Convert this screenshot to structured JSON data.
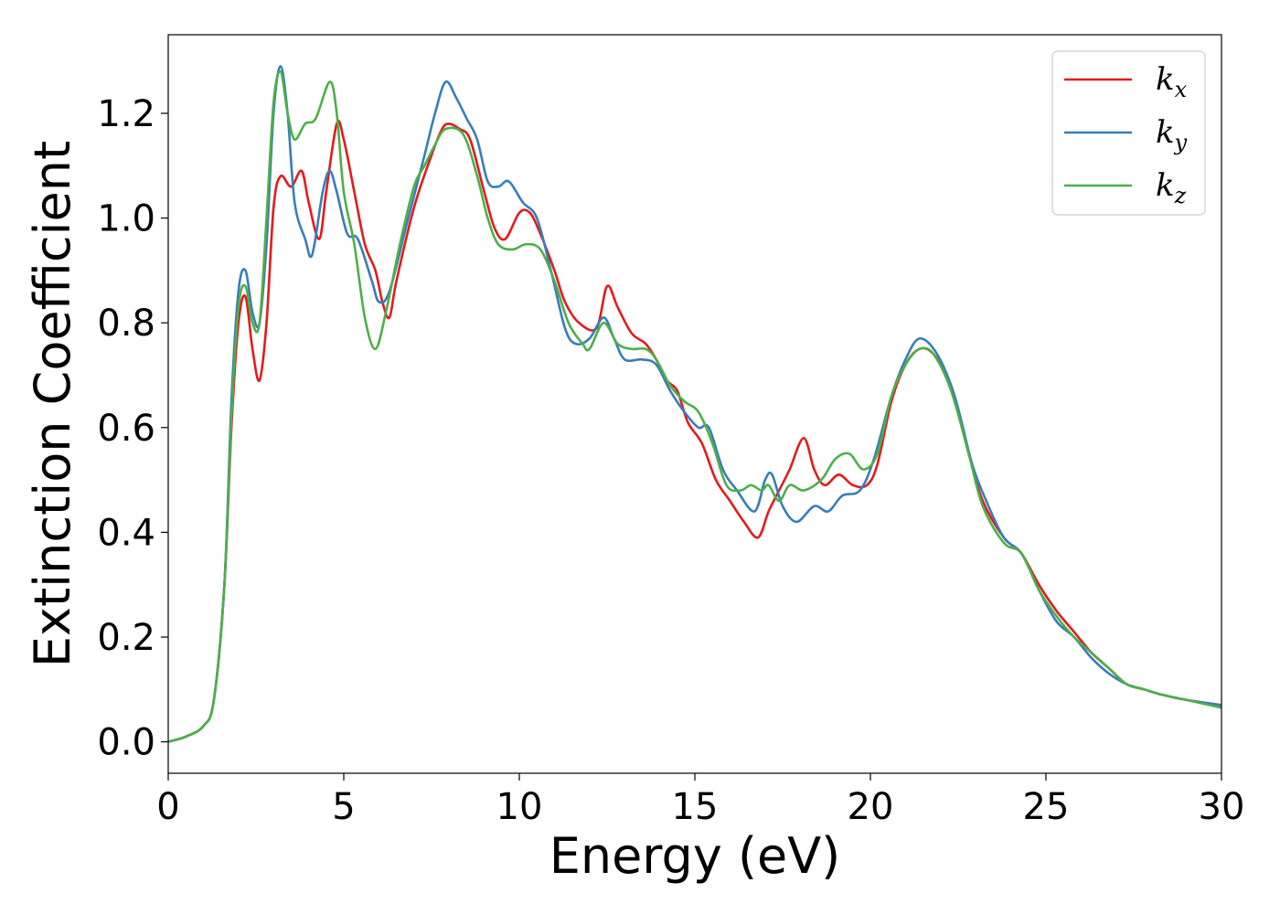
{
  "chart_data": {
    "type": "line",
    "title": "",
    "xlabel": "Energy (eV)",
    "ylabel": "Extinction Coefficient",
    "xlim": [
      0,
      30
    ],
    "ylim": [
      -0.06,
      1.35
    ],
    "xticks": [
      0,
      5,
      10,
      15,
      20,
      25,
      30
    ],
    "yticks": [
      0.0,
      0.2,
      0.4,
      0.6,
      0.8,
      1.0,
      1.2
    ],
    "ytick_labels": [
      "0.0",
      "0.2",
      "0.4",
      "0.6",
      "0.8",
      "1.0",
      "1.2"
    ],
    "grid": false,
    "legend_position": "top-right",
    "series": [
      {
        "name": "kx",
        "base": "k",
        "sub": "x",
        "color": "#e41a1c",
        "points": [
          [
            0,
            0
          ],
          [
            0.5,
            0.01
          ],
          [
            1,
            0.03
          ],
          [
            1.3,
            0.08
          ],
          [
            1.6,
            0.3
          ],
          [
            1.8,
            0.6
          ],
          [
            2.0,
            0.8
          ],
          [
            2.2,
            0.85
          ],
          [
            2.4,
            0.75
          ],
          [
            2.6,
            0.69
          ],
          [
            2.8,
            0.8
          ],
          [
            3.0,
            1.02
          ],
          [
            3.2,
            1.08
          ],
          [
            3.5,
            1.06
          ],
          [
            3.8,
            1.09
          ],
          [
            4.0,
            1.03
          ],
          [
            4.3,
            0.96
          ],
          [
            4.5,
            1.05
          ],
          [
            4.8,
            1.18
          ],
          [
            5.0,
            1.15
          ],
          [
            5.3,
            1.05
          ],
          [
            5.6,
            0.95
          ],
          [
            5.9,
            0.9
          ],
          [
            6.1,
            0.84
          ],
          [
            6.3,
            0.81
          ],
          [
            6.5,
            0.88
          ],
          [
            7.0,
            1.02
          ],
          [
            7.5,
            1.12
          ],
          [
            7.8,
            1.17
          ],
          [
            8.0,
            1.18
          ],
          [
            8.3,
            1.17
          ],
          [
            8.6,
            1.15
          ],
          [
            9.0,
            1.05
          ],
          [
            9.3,
            0.98
          ],
          [
            9.6,
            0.96
          ],
          [
            10.0,
            1.01
          ],
          [
            10.3,
            1.01
          ],
          [
            10.6,
            0.97
          ],
          [
            11.0,
            0.9
          ],
          [
            11.3,
            0.84
          ],
          [
            11.7,
            0.8
          ],
          [
            12.2,
            0.79
          ],
          [
            12.5,
            0.87
          ],
          [
            12.8,
            0.83
          ],
          [
            13.2,
            0.78
          ],
          [
            13.6,
            0.76
          ],
          [
            13.9,
            0.73
          ],
          [
            14.2,
            0.69
          ],
          [
            14.5,
            0.67
          ],
          [
            14.8,
            0.61
          ],
          [
            15.2,
            0.57
          ],
          [
            15.6,
            0.5
          ],
          [
            16.0,
            0.46
          ],
          [
            16.4,
            0.42
          ],
          [
            16.8,
            0.39
          ],
          [
            17.1,
            0.44
          ],
          [
            17.4,
            0.48
          ],
          [
            17.7,
            0.52
          ],
          [
            18.1,
            0.58
          ],
          [
            18.4,
            0.52
          ],
          [
            18.7,
            0.49
          ],
          [
            19.1,
            0.51
          ],
          [
            19.5,
            0.49
          ],
          [
            19.9,
            0.49
          ],
          [
            20.2,
            0.53
          ],
          [
            20.6,
            0.65
          ],
          [
            21.0,
            0.72
          ],
          [
            21.4,
            0.75
          ],
          [
            21.8,
            0.74
          ],
          [
            22.3,
            0.68
          ],
          [
            22.8,
            0.55
          ],
          [
            23.2,
            0.46
          ],
          [
            23.8,
            0.39
          ],
          [
            24.3,
            0.36
          ],
          [
            24.8,
            0.3
          ],
          [
            25.3,
            0.25
          ],
          [
            25.8,
            0.21
          ],
          [
            26.3,
            0.17
          ],
          [
            26.8,
            0.14
          ],
          [
            27.3,
            0.11
          ],
          [
            27.8,
            0.1
          ],
          [
            28.3,
            0.09
          ],
          [
            29.0,
            0.08
          ],
          [
            30,
            0.07
          ]
        ]
      },
      {
        "name": "ky",
        "base": "k",
        "sub": "y",
        "color": "#377eb8",
        "points": [
          [
            0,
            0
          ],
          [
            0.5,
            0.01
          ],
          [
            1,
            0.03
          ],
          [
            1.3,
            0.08
          ],
          [
            1.6,
            0.3
          ],
          [
            1.8,
            0.65
          ],
          [
            2.0,
            0.86
          ],
          [
            2.2,
            0.9
          ],
          [
            2.4,
            0.82
          ],
          [
            2.6,
            0.8
          ],
          [
            2.8,
            0.95
          ],
          [
            3.0,
            1.2
          ],
          [
            3.2,
            1.29
          ],
          [
            3.4,
            1.2
          ],
          [
            3.6,
            1.03
          ],
          [
            3.9,
            0.96
          ],
          [
            4.1,
            0.93
          ],
          [
            4.4,
            1.05
          ],
          [
            4.6,
            1.09
          ],
          [
            4.8,
            1.05
          ],
          [
            5.1,
            0.97
          ],
          [
            5.4,
            0.96
          ],
          [
            5.8,
            0.88
          ],
          [
            6.0,
            0.84
          ],
          [
            6.3,
            0.86
          ],
          [
            6.8,
            0.99
          ],
          [
            7.3,
            1.12
          ],
          [
            7.6,
            1.2
          ],
          [
            7.9,
            1.26
          ],
          [
            8.2,
            1.23
          ],
          [
            8.5,
            1.19
          ],
          [
            8.8,
            1.15
          ],
          [
            9.1,
            1.07
          ],
          [
            9.4,
            1.06
          ],
          [
            9.7,
            1.07
          ],
          [
            10.1,
            1.03
          ],
          [
            10.5,
            1.0
          ],
          [
            10.9,
            0.9
          ],
          [
            11.3,
            0.79
          ],
          [
            11.6,
            0.76
          ],
          [
            12.0,
            0.77
          ],
          [
            12.4,
            0.81
          ],
          [
            12.7,
            0.77
          ],
          [
            13.0,
            0.73
          ],
          [
            13.5,
            0.73
          ],
          [
            13.9,
            0.72
          ],
          [
            14.3,
            0.67
          ],
          [
            14.7,
            0.63
          ],
          [
            15.1,
            0.6
          ],
          [
            15.4,
            0.6
          ],
          [
            15.8,
            0.52
          ],
          [
            16.2,
            0.48
          ],
          [
            16.7,
            0.44
          ],
          [
            17.0,
            0.5
          ],
          [
            17.2,
            0.51
          ],
          [
            17.5,
            0.45
          ],
          [
            17.9,
            0.42
          ],
          [
            18.4,
            0.45
          ],
          [
            18.8,
            0.44
          ],
          [
            19.2,
            0.47
          ],
          [
            19.7,
            0.48
          ],
          [
            20.1,
            0.54
          ],
          [
            20.6,
            0.66
          ],
          [
            21.0,
            0.73
          ],
          [
            21.4,
            0.77
          ],
          [
            21.9,
            0.74
          ],
          [
            22.4,
            0.66
          ],
          [
            22.9,
            0.53
          ],
          [
            23.3,
            0.46
          ],
          [
            23.8,
            0.39
          ],
          [
            24.3,
            0.36
          ],
          [
            24.8,
            0.29
          ],
          [
            25.3,
            0.23
          ],
          [
            25.8,
            0.2
          ],
          [
            26.3,
            0.16
          ],
          [
            26.8,
            0.13
          ],
          [
            27.3,
            0.11
          ],
          [
            27.8,
            0.1
          ],
          [
            28.3,
            0.09
          ],
          [
            29.0,
            0.08
          ],
          [
            30,
            0.07
          ]
        ]
      },
      {
        "name": "kz",
        "base": "k",
        "sub": "z",
        "color": "#4daf4a",
        "points": [
          [
            0,
            0
          ],
          [
            0.5,
            0.01
          ],
          [
            1,
            0.03
          ],
          [
            1.3,
            0.08
          ],
          [
            1.6,
            0.3
          ],
          [
            1.8,
            0.62
          ],
          [
            2.0,
            0.83
          ],
          [
            2.2,
            0.87
          ],
          [
            2.4,
            0.8
          ],
          [
            2.6,
            0.8
          ],
          [
            2.8,
            1.0
          ],
          [
            3.0,
            1.22
          ],
          [
            3.2,
            1.28
          ],
          [
            3.4,
            1.2
          ],
          [
            3.6,
            1.15
          ],
          [
            3.9,
            1.18
          ],
          [
            4.2,
            1.19
          ],
          [
            4.6,
            1.26
          ],
          [
            4.8,
            1.2
          ],
          [
            5.0,
            1.05
          ],
          [
            5.3,
            0.95
          ],
          [
            5.6,
            0.81
          ],
          [
            5.9,
            0.75
          ],
          [
            6.2,
            0.82
          ],
          [
            6.6,
            0.95
          ],
          [
            7.0,
            1.06
          ],
          [
            7.3,
            1.1
          ],
          [
            7.6,
            1.14
          ],
          [
            7.9,
            1.17
          ],
          [
            8.4,
            1.16
          ],
          [
            8.8,
            1.08
          ],
          [
            9.1,
            1.0
          ],
          [
            9.4,
            0.95
          ],
          [
            9.8,
            0.94
          ],
          [
            10.2,
            0.95
          ],
          [
            10.6,
            0.94
          ],
          [
            11.0,
            0.88
          ],
          [
            11.4,
            0.8
          ],
          [
            11.8,
            0.76
          ],
          [
            12.0,
            0.75
          ],
          [
            12.4,
            0.8
          ],
          [
            12.8,
            0.76
          ],
          [
            13.2,
            0.75
          ],
          [
            13.6,
            0.75
          ],
          [
            13.9,
            0.73
          ],
          [
            14.3,
            0.68
          ],
          [
            14.7,
            0.65
          ],
          [
            15.1,
            0.63
          ],
          [
            15.5,
            0.57
          ],
          [
            15.9,
            0.49
          ],
          [
            16.3,
            0.48
          ],
          [
            16.6,
            0.49
          ],
          [
            16.9,
            0.48
          ],
          [
            17.1,
            0.49
          ],
          [
            17.4,
            0.46
          ],
          [
            17.7,
            0.49
          ],
          [
            18.1,
            0.48
          ],
          [
            18.6,
            0.5
          ],
          [
            19.0,
            0.54
          ],
          [
            19.4,
            0.55
          ],
          [
            19.8,
            0.52
          ],
          [
            20.2,
            0.55
          ],
          [
            20.6,
            0.66
          ],
          [
            21.0,
            0.72
          ],
          [
            21.4,
            0.75
          ],
          [
            21.8,
            0.74
          ],
          [
            22.3,
            0.67
          ],
          [
            22.8,
            0.55
          ],
          [
            23.2,
            0.45
          ],
          [
            23.8,
            0.38
          ],
          [
            24.3,
            0.36
          ],
          [
            24.8,
            0.29
          ],
          [
            25.3,
            0.24
          ],
          [
            25.8,
            0.2
          ],
          [
            26.3,
            0.17
          ],
          [
            26.8,
            0.14
          ],
          [
            27.3,
            0.11
          ],
          [
            27.8,
            0.1
          ],
          [
            28.3,
            0.09
          ],
          [
            29.0,
            0.08
          ],
          [
            30,
            0.065
          ]
        ]
      }
    ]
  }
}
